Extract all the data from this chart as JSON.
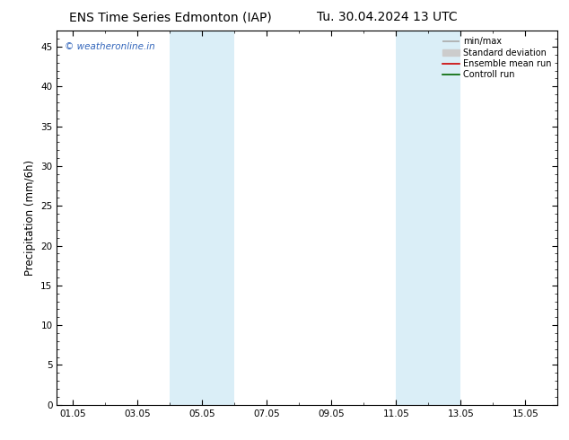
{
  "title_left": "ENS Time Series Edmonton (IAP)",
  "title_right": "Tu. 30.04.2024 13 UTC",
  "ylabel": "Precipitation (mm/6h)",
  "ylim": [
    0,
    47
  ],
  "yticks": [
    0,
    5,
    10,
    15,
    20,
    25,
    30,
    35,
    40,
    45
  ],
  "xtick_labels": [
    "01.05",
    "03.05",
    "05.05",
    "07.05",
    "09.05",
    "11.05",
    "13.05",
    "15.05"
  ],
  "xtick_positions": [
    1,
    3,
    5,
    7,
    9,
    11,
    13,
    15
  ],
  "xlim": [
    0.5,
    16
  ],
  "shaded_regions": [
    {
      "start": 4.0,
      "end": 6.0
    },
    {
      "start": 11.0,
      "end": 13.0
    }
  ],
  "shade_color": "#daeef7",
  "watermark": "© weatheronline.in",
  "watermark_color": "#3366bb",
  "legend_items": [
    {
      "label": "min/max",
      "color": "#aaaaaa",
      "lw": 1.2
    },
    {
      "label": "Standard deviation",
      "color": "#cccccc",
      "lw": 5
    },
    {
      "label": "Ensemble mean run",
      "color": "#cc0000",
      "lw": 1.2
    },
    {
      "label": "Controll run",
      "color": "#006600",
      "lw": 1.2
    }
  ],
  "grid_color": "#ffffff",
  "background_color": "#ffffff",
  "plot_bg_color": "#ffffff",
  "title_fontsize": 10,
  "tick_fontsize": 7.5,
  "ylabel_fontsize": 8.5,
  "watermark_fontsize": 7.5,
  "legend_fontsize": 7
}
